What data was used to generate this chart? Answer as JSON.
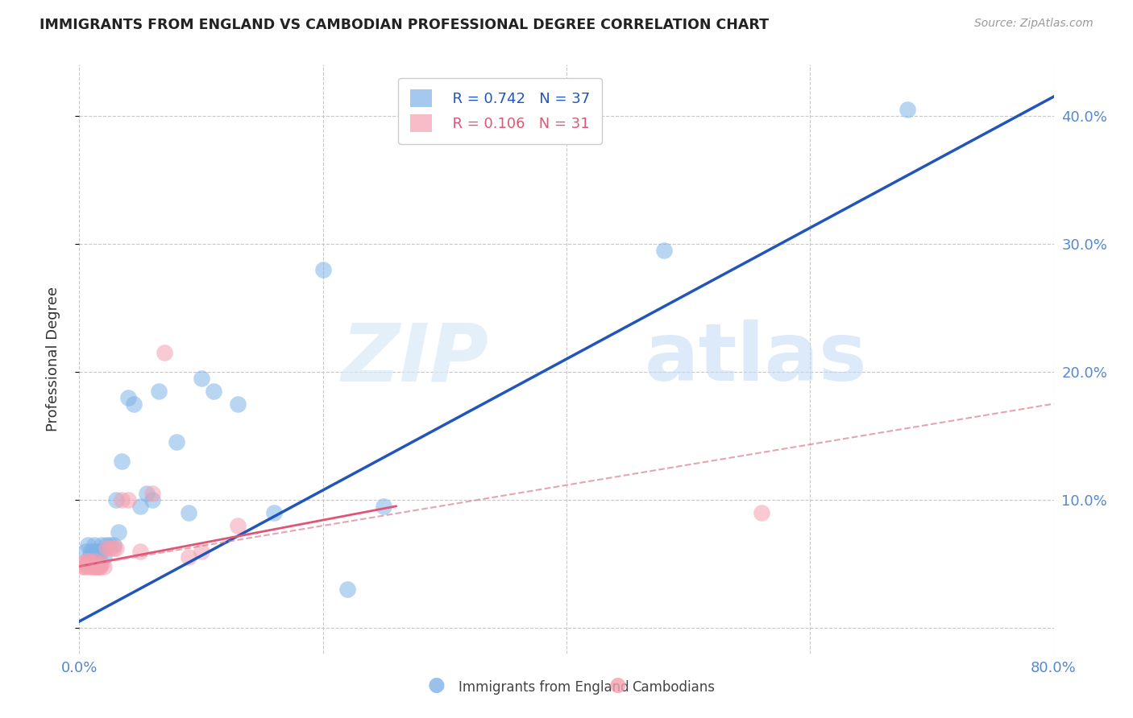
{
  "title": "IMMIGRANTS FROM ENGLAND VS CAMBODIAN PROFESSIONAL DEGREE CORRELATION CHART",
  "source": "Source: ZipAtlas.com",
  "ylabel": "Professional Degree",
  "xlim": [
    0.0,
    0.8
  ],
  "ylim": [
    -0.02,
    0.44
  ],
  "grid_color": "#c8c8c8",
  "watermark_zip": "ZIP",
  "watermark_atlas": "atlas",
  "blue_color": "#7fb3e8",
  "pink_color": "#f4a0b0",
  "blue_line_color": "#2255bb",
  "pink_line_color": "#e05575",
  "pink_line_color_dashed": "#d88090",
  "legend_R_blue": "0.742",
  "legend_N_blue": "37",
  "legend_R_pink": "0.106",
  "legend_N_pink": "31",
  "blue_scatter_x": [
    0.005,
    0.007,
    0.008,
    0.009,
    0.01,
    0.011,
    0.012,
    0.013,
    0.014,
    0.015,
    0.016,
    0.017,
    0.018,
    0.02,
    0.022,
    0.025,
    0.028,
    0.03,
    0.032,
    0.035,
    0.04,
    0.045,
    0.05,
    0.055,
    0.06,
    0.065,
    0.08,
    0.09,
    0.1,
    0.11,
    0.13,
    0.16,
    0.2,
    0.22,
    0.25,
    0.48,
    0.68
  ],
  "blue_scatter_y": [
    0.06,
    0.065,
    0.055,
    0.06,
    0.05,
    0.06,
    0.065,
    0.055,
    0.06,
    0.06,
    0.055,
    0.06,
    0.065,
    0.055,
    0.065,
    0.065,
    0.065,
    0.1,
    0.075,
    0.13,
    0.18,
    0.175,
    0.095,
    0.105,
    0.1,
    0.185,
    0.145,
    0.09,
    0.195,
    0.185,
    0.175,
    0.09,
    0.28,
    0.03,
    0.095,
    0.295,
    0.405
  ],
  "pink_scatter_x": [
    0.002,
    0.003,
    0.004,
    0.005,
    0.006,
    0.007,
    0.008,
    0.009,
    0.01,
    0.011,
    0.012,
    0.013,
    0.014,
    0.015,
    0.016,
    0.017,
    0.018,
    0.02,
    0.022,
    0.025,
    0.028,
    0.03,
    0.035,
    0.04,
    0.05,
    0.06,
    0.07,
    0.09,
    0.1,
    0.13,
    0.56
  ],
  "pink_scatter_y": [
    0.05,
    0.048,
    0.048,
    0.05,
    0.052,
    0.048,
    0.052,
    0.048,
    0.05,
    0.048,
    0.048,
    0.052,
    0.048,
    0.048,
    0.048,
    0.048,
    0.05,
    0.048,
    0.062,
    0.062,
    0.062,
    0.062,
    0.1,
    0.1,
    0.06,
    0.105,
    0.215,
    0.055,
    0.06,
    0.08,
    0.09
  ],
  "blue_line_x": [
    0.0,
    0.8
  ],
  "blue_line_y": [
    0.005,
    0.415
  ],
  "pink_solid_line_x": [
    0.0,
    0.26
  ],
  "pink_solid_line_y": [
    0.048,
    0.095
  ],
  "pink_dash_line_x": [
    0.0,
    0.8
  ],
  "pink_dash_line_y": [
    0.048,
    0.175
  ]
}
